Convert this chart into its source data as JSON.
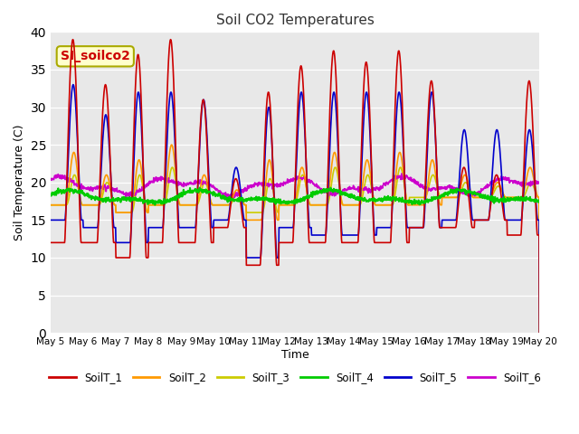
{
  "title": "Soil CO2 Temperatures",
  "xlabel": "Time",
  "ylabel": "Soil Temperature (C)",
  "annotation": "SI_soilco2",
  "ylim": [
    0,
    40
  ],
  "yticks": [
    0,
    5,
    10,
    15,
    20,
    25,
    30,
    35,
    40
  ],
  "x_tick_labels": [
    "May 5",
    "May 6",
    "May 7",
    "May 8",
    "May 9",
    "May 10",
    "May 11",
    "May 12",
    "May 13",
    "May 14",
    "May 15",
    "May 16",
    "May 17",
    "May 18",
    "May 19",
    "May 20"
  ],
  "colors": {
    "SoilT_1": "#cc0000",
    "SoilT_2": "#ff9900",
    "SoilT_3": "#cccc00",
    "SoilT_4": "#00cc00",
    "SoilT_5": "#0000cc",
    "SoilT_6": "#cc00cc"
  },
  "plot_bg_color": "#e8e8e8",
  "fig_bg_color": "#ffffff",
  "grid_color": "#ffffff",
  "annotation_bg": "#ffffcc",
  "annotation_border": "#aaaa00",
  "annotation_text_color": "#cc0000",
  "num_days": 15,
  "points_per_day": 96
}
